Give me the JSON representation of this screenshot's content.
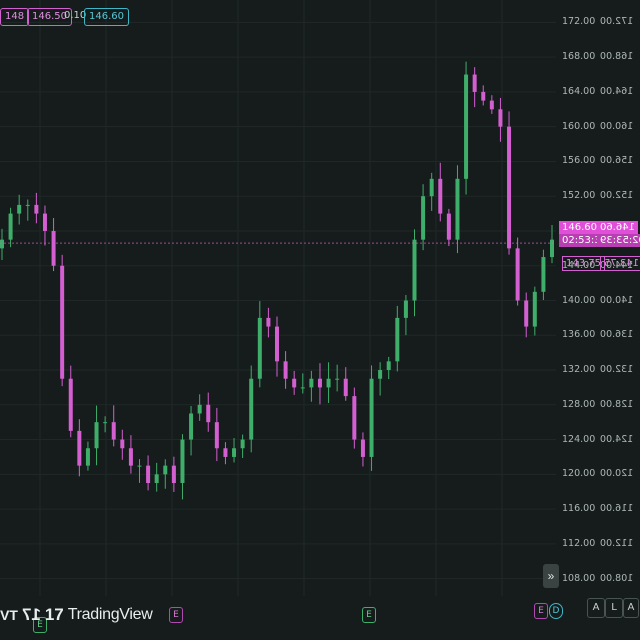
{
  "header": {
    "ohlc_values": [
      "148",
      "146.50",
      "0.10",
      "146.60"
    ]
  },
  "price_axis": {
    "labels": [
      "172.00",
      "168.00",
      "164.00",
      "160.00",
      "156.00",
      "152.00",
      "148.00",
      "144.00",
      "140.00",
      "136.00",
      "132.00",
      "128.00",
      "124.00",
      "120.00",
      "116.00",
      "112.00",
      "108.00"
    ],
    "right_labels": [
      "172.00",
      "168.00",
      "164.00",
      "160.00",
      "156.00",
      "152.00",
      "148.00",
      "144.00",
      "140.00",
      "136.00",
      "132.00",
      "128.00",
      "124.00",
      "120.00",
      "116.00",
      "112.00",
      "108.00"
    ]
  },
  "current_price": {
    "value": "146.60",
    "countdown": "02:53:39",
    "mirror_value": "146.60",
    "mirror_countdown": "02:53:39",
    "low_tag": "143.75",
    "low_tag_mirror": "143.75"
  },
  "markers": {
    "e_left": "E",
    "e_mid": "E",
    "e_right": "E",
    "d_right": "D",
    "e_bottom_left": "E"
  },
  "brand": {
    "logo_text": "17",
    "name": "TradingView",
    "mirror_logo": "TV"
  },
  "bottom_buttons": [
    "A",
    "L",
    "A"
  ],
  "scroll_button": "»",
  "colors": {
    "background": "#161c1c",
    "up_candle": "#3fae6a",
    "down_candle": "#d35fd0",
    "price_line": "#d35fd0",
    "price_tag_bg": "#e04fd8",
    "grid": "#1f2727"
  },
  "chart_data": {
    "type": "candlestick",
    "y_axis_range": [
      106,
      174
    ],
    "price_line": 146.6,
    "closes_approx": [
      147,
      150,
      151,
      151,
      150,
      148,
      144,
      131,
      125,
      121,
      123,
      126,
      126,
      124,
      123,
      121,
      121,
      119,
      120,
      121,
      119,
      124,
      127,
      128,
      126,
      123,
      122,
      123,
      124,
      131,
      138,
      137,
      133,
      131,
      130,
      130,
      131,
      130,
      131,
      131,
      129,
      124,
      122,
      131,
      132,
      133,
      138,
      140,
      147,
      152,
      154,
      150,
      147,
      154,
      166,
      164,
      163,
      162,
      160,
      146,
      140,
      137,
      141,
      145,
      147
    ]
  }
}
